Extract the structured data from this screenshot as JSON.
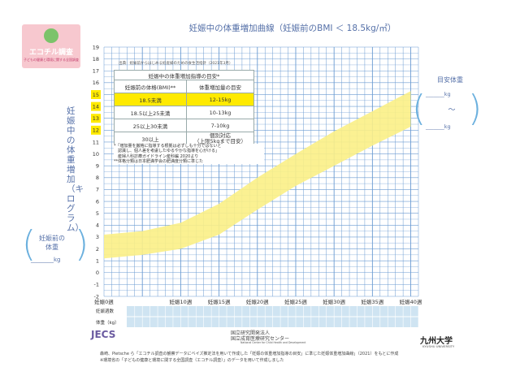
{
  "logo": {
    "title": "エコチル調査",
    "subtitle": "子どもの健康と環境に関する全国調査"
  },
  "chart_data": {
    "type": "area",
    "title": "妊娠中の体重増加曲線（妊娠前のBMI ＜ 18.5kg/㎡）",
    "ylabel": "妊娠中の体重増加（キログラム）",
    "ylim": [
      -2,
      19
    ],
    "yticks": [
      "19",
      "18",
      "17",
      "16",
      "15",
      "14",
      "13",
      "12",
      "11",
      "10",
      "9",
      "8",
      "7",
      "6",
      "5",
      "4",
      "3",
      "2",
      "1",
      "0",
      "-1",
      "-2"
    ],
    "xlim": [
      0,
      41
    ],
    "xticks": [
      {
        "week": 0,
        "label": "妊娠0週"
      },
      {
        "week": 10,
        "label": "妊娠10週"
      },
      {
        "week": 15,
        "label": "妊娠15週"
      },
      {
        "week": 20,
        "label": "妊娠20週"
      },
      {
        "week": 25,
        "label": "妊娠25週"
      },
      {
        "week": 30,
        "label": "妊娠30週"
      },
      {
        "week": 35,
        "label": "妊娠35週"
      },
      {
        "week": 40,
        "label": "妊娠40週"
      }
    ],
    "band": {
      "weeks": [
        0,
        5,
        10,
        15,
        20,
        25,
        30,
        35,
        40
      ],
      "lower": [
        1.2,
        1.5,
        2.0,
        3.2,
        5.3,
        7.3,
        9.0,
        10.7,
        12.3
      ],
      "upper": [
        3.2,
        3.5,
        4.2,
        5.8,
        8.0,
        10.0,
        11.9,
        13.6,
        15.3
      ]
    },
    "grid": true
  },
  "highlighted_yticks": [
    "15",
    "14",
    "13",
    "12"
  ],
  "pre_pregnancy": {
    "label": "妊娠前の\n体重",
    "unit": "kg"
  },
  "target": {
    "title": "目安体重",
    "unit": "kg",
    "tilde": "〜"
  },
  "source": "出典：妊娠前からはじめる妊産婦のための食生活指針（2021年3月）",
  "guide_table": {
    "caption": "妊娠中の体重増加指導の目安*",
    "col1_header": "妊娠前の体格(BMI)**",
    "col2_header": "体重増加量の目安",
    "rows": [
      {
        "bmi": "18.5未満",
        "gain": "12-15kg",
        "highlight": true
      },
      {
        "bmi": "18.5以上25未満",
        "gain": "10-13kg",
        "highlight": false
      },
      {
        "bmi": "25以上30未満",
        "gain": "7-10kg",
        "highlight": false
      },
      {
        "bmi": "30以上",
        "gain": "個別対応\n（上限5kgまで目安）",
        "highlight": false
      }
    ]
  },
  "notes": [
    "*「増加量を厳格に指導する根拠は必ずしも十分ではないと",
    "　認識し、個人差を考慮したゆるやかな指導を心がける」",
    "　産婦人科診療ガイドライン産科編 2020より",
    "**体格分類は日本肥満学会の肥満度分類に準じた"
  ],
  "bottom_rows": {
    "row1": "妊娠週数",
    "row2": "体重（kg）"
  },
  "credits": {
    "jecs": "JECS",
    "ncchd": "国立研究開発法人\n国立成育医療研究センター",
    "ncchd_en": "National Center for Child Health and Development",
    "kyushu": "九州大学",
    "kyushu_en": "KYUSHU UNIVERSITY",
    "line1": "森崎、Pietsche ら「エコチル調査の観察データにベイズ推定法を用いて作成した「妊娠の体重増加指導の目安」に準じた妊娠体重増加曲線」（2021）をもとに作成",
    "line2": "※環境省の「子どもの健康と環境に関する全国調査（エコチル調査）」のデータを用いて作成しました"
  },
  "colors": {
    "grid": "#6b9bd2",
    "band": "#fbf086",
    "axis_text": "#333333",
    "title_text": "#5570a8",
    "highlight": "#ffea00",
    "paren": "#6bb0de",
    "row_fill": "#cfe4f2"
  }
}
